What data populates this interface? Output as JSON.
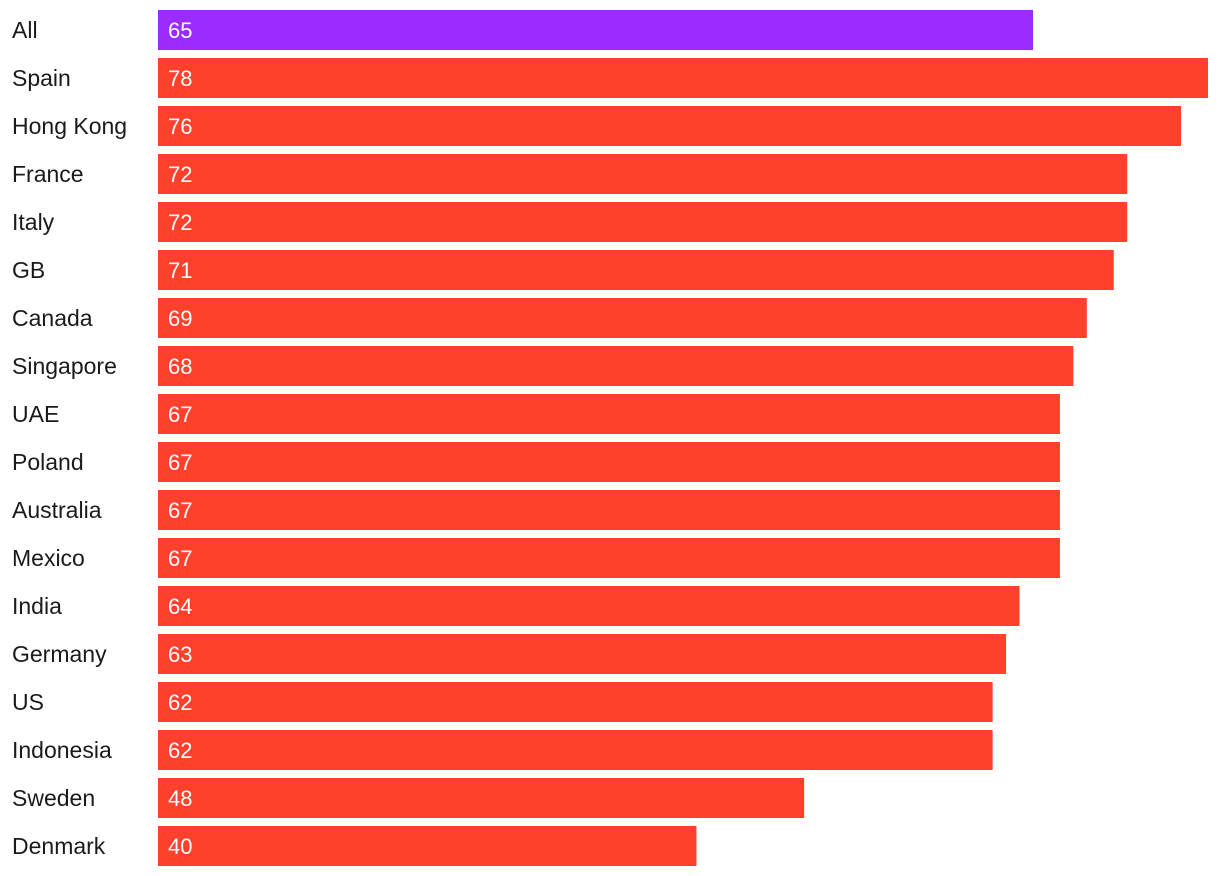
{
  "chart_data": {
    "type": "bar",
    "orientation": "horizontal",
    "title": "",
    "xlabel": "",
    "ylabel": "",
    "categories": [
      "All",
      "Spain",
      "Hong Kong",
      "France",
      "Italy",
      "GB",
      "Canada",
      "Singapore",
      "UAE",
      "Poland",
      "Australia",
      "Mexico",
      "India",
      "Germany",
      "US",
      "Indonesia",
      "Sweden",
      "Denmark"
    ],
    "values": [
      65,
      78,
      76,
      72,
      72,
      71,
      69,
      68,
      67,
      67,
      67,
      67,
      64,
      63,
      62,
      62,
      48,
      40
    ],
    "highlight_category": "All",
    "colors": {
      "highlight": "#9b2cff",
      "bar": "#ff412c",
      "value_text": "#ffffff",
      "category_text": "#1a1a1a"
    },
    "xlim": [
      0,
      78
    ],
    "grid": false,
    "legend": "none"
  }
}
